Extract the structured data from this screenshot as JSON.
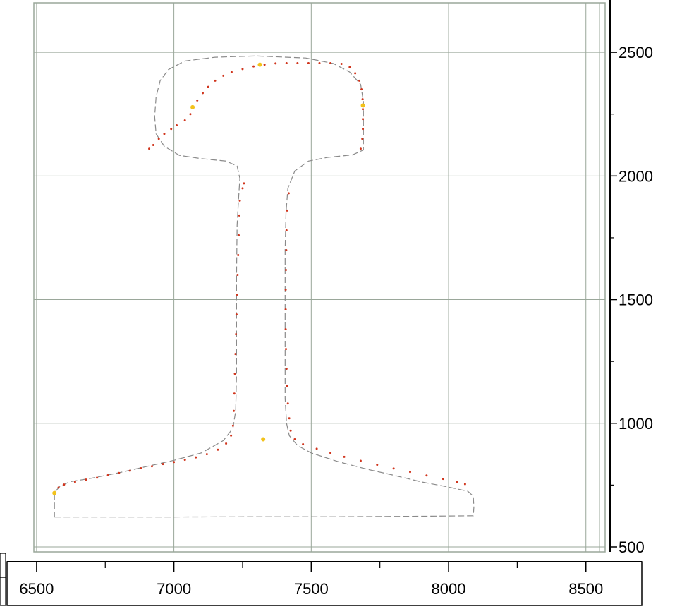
{
  "chart_data": {
    "type": "scatter",
    "title": "",
    "xlabel": "",
    "ylabel": "",
    "xlim": [
      6490,
      8570
    ],
    "ylim": [
      480,
      2700
    ],
    "x_ticks": [
      6500,
      7000,
      7500,
      8000,
      8500
    ],
    "y_ticks": [
      500,
      1000,
      1500,
      2000,
      2500
    ],
    "x_tick_labels": [
      "6500",
      "7000",
      "7500",
      "8000",
      "8500"
    ],
    "y_tick_labels": [
      "500",
      "1000",
      "1500",
      "2000",
      "2500"
    ],
    "grid": true,
    "legend": "none",
    "colors": {
      "grid": "#9aa79a",
      "frame": "#9aa79a",
      "reference_profile": "#8a8a8a",
      "measured_points": "#d0341c",
      "key_points": "#f2c21b",
      "axis": "#000000"
    },
    "series": [
      {
        "style": "dashed-line",
        "points": [
          [
            6565,
            621
          ],
          [
            6700,
            621
          ],
          [
            7000,
            621
          ],
          [
            7300,
            622
          ],
          [
            7600,
            622
          ],
          [
            7900,
            624
          ],
          [
            8090,
            626
          ],
          [
            8092,
            660
          ],
          [
            8090,
            705
          ],
          [
            8070,
            725
          ],
          [
            8000,
            742
          ],
          [
            7900,
            763
          ],
          [
            7800,
            790
          ],
          [
            7700,
            815
          ],
          [
            7600,
            844
          ],
          [
            7500,
            880
          ],
          [
            7450,
            910
          ],
          [
            7420,
            950
          ],
          [
            7410,
            1000
          ],
          [
            7405,
            1100
          ],
          [
            7405,
            1300
          ],
          [
            7405,
            1500
          ],
          [
            7405,
            1700
          ],
          [
            7408,
            1850
          ],
          [
            7415,
            1950
          ],
          [
            7440,
            2020
          ],
          [
            7490,
            2060
          ],
          [
            7560,
            2075
          ],
          [
            7650,
            2085
          ],
          [
            7690,
            2105
          ],
          [
            7690,
            2200
          ],
          [
            7690,
            2300
          ],
          [
            7680,
            2370
          ],
          [
            7640,
            2420
          ],
          [
            7580,
            2455
          ],
          [
            7480,
            2477
          ],
          [
            7300,
            2485
          ],
          [
            7150,
            2480
          ],
          [
            7040,
            2465
          ],
          [
            6980,
            2430
          ],
          [
            6950,
            2385
          ],
          [
            6935,
            2320
          ],
          [
            6930,
            2240
          ],
          [
            6935,
            2170
          ],
          [
            6965,
            2120
          ],
          [
            7020,
            2083
          ],
          [
            7100,
            2070
          ],
          [
            7190,
            2060
          ],
          [
            7230,
            2040
          ],
          [
            7240,
            1990
          ],
          [
            7235,
            1900
          ],
          [
            7230,
            1800
          ],
          [
            7228,
            1600
          ],
          [
            7228,
            1400
          ],
          [
            7228,
            1200
          ],
          [
            7225,
            1050
          ],
          [
            7215,
            980
          ],
          [
            7180,
            930
          ],
          [
            7100,
            880
          ],
          [
            7000,
            850
          ],
          [
            6900,
            825
          ],
          [
            6800,
            800
          ],
          [
            6700,
            778
          ],
          [
            6620,
            763
          ],
          [
            6585,
            745
          ],
          [
            6565,
            720
          ],
          [
            6565,
            621
          ]
        ]
      },
      {
        "style": "dots",
        "points": [
          [
            6565,
            720
          ],
          [
            6580,
            740
          ],
          [
            6600,
            752
          ],
          [
            6640,
            763
          ],
          [
            6680,
            772
          ],
          [
            6720,
            780
          ],
          [
            6760,
            790
          ],
          [
            6800,
            799
          ],
          [
            6840,
            808
          ],
          [
            6880,
            818
          ],
          [
            6920,
            826
          ],
          [
            6960,
            835
          ],
          [
            7000,
            843
          ],
          [
            7040,
            852
          ],
          [
            7080,
            862
          ],
          [
            7120,
            875
          ],
          [
            7160,
            893
          ],
          [
            7190,
            918
          ],
          [
            7208,
            950
          ],
          [
            7215,
            990
          ],
          [
            7218,
            1050
          ],
          [
            7220,
            1120
          ],
          [
            7222,
            1200
          ],
          [
            7224,
            1280
          ],
          [
            7226,
            1360
          ],
          [
            7228,
            1440
          ],
          [
            7230,
            1520
          ],
          [
            7232,
            1600
          ],
          [
            7234,
            1680
          ],
          [
            7236,
            1760
          ],
          [
            7238,
            1840
          ],
          [
            7240,
            1900
          ],
          [
            7250,
            1950
          ],
          [
            7255,
            1970
          ],
          [
            7425,
            970
          ],
          [
            7420,
            1020
          ],
          [
            7415,
            1080
          ],
          [
            7412,
            1150
          ],
          [
            7410,
            1220
          ],
          [
            7408,
            1300
          ],
          [
            7407,
            1380
          ],
          [
            7407,
            1460
          ],
          [
            7407,
            1540
          ],
          [
            7408,
            1620
          ],
          [
            7409,
            1700
          ],
          [
            7410,
            1780
          ],
          [
            7412,
            1860
          ],
          [
            7418,
            1930
          ],
          [
            7440,
            935
          ],
          [
            7470,
            915
          ],
          [
            7520,
            897
          ],
          [
            7570,
            880
          ],
          [
            7620,
            864
          ],
          [
            7680,
            848
          ],
          [
            7740,
            832
          ],
          [
            7800,
            817
          ],
          [
            7860,
            803
          ],
          [
            7920,
            789
          ],
          [
            7980,
            775
          ],
          [
            8030,
            762
          ],
          [
            8060,
            754
          ],
          [
            6910,
            2110
          ],
          [
            6925,
            2125
          ],
          [
            6945,
            2150
          ],
          [
            6965,
            2170
          ],
          [
            6990,
            2190
          ],
          [
            7010,
            2205
          ],
          [
            7040,
            2225
          ],
          [
            7060,
            2250
          ],
          [
            7070,
            2275
          ],
          [
            7085,
            2305
          ],
          [
            7105,
            2335
          ],
          [
            7125,
            2360
          ],
          [
            7150,
            2385
          ],
          [
            7180,
            2405
          ],
          [
            7210,
            2420
          ],
          [
            7250,
            2432
          ],
          [
            7290,
            2443
          ],
          [
            7330,
            2450
          ],
          [
            7370,
            2455
          ],
          [
            7410,
            2456
          ],
          [
            7450,
            2456
          ],
          [
            7490,
            2456
          ],
          [
            7530,
            2456
          ],
          [
            7570,
            2456
          ],
          [
            7610,
            2453
          ],
          [
            7640,
            2440
          ],
          [
            7660,
            2415
          ],
          [
            7675,
            2385
          ],
          [
            7683,
            2350
          ],
          [
            7687,
            2310
          ],
          [
            7688,
            2270
          ],
          [
            7688,
            2230
          ],
          [
            7688,
            2190
          ],
          [
            7686,
            2150
          ],
          [
            7680,
            2110
          ]
        ]
      },
      {
        "style": "highlight-dots",
        "points": [
          [
            6565,
            718
          ],
          [
            7068,
            2278
          ],
          [
            7313,
            2450
          ],
          [
            7688,
            2285
          ],
          [
            7325,
            935
          ]
        ]
      }
    ]
  }
}
